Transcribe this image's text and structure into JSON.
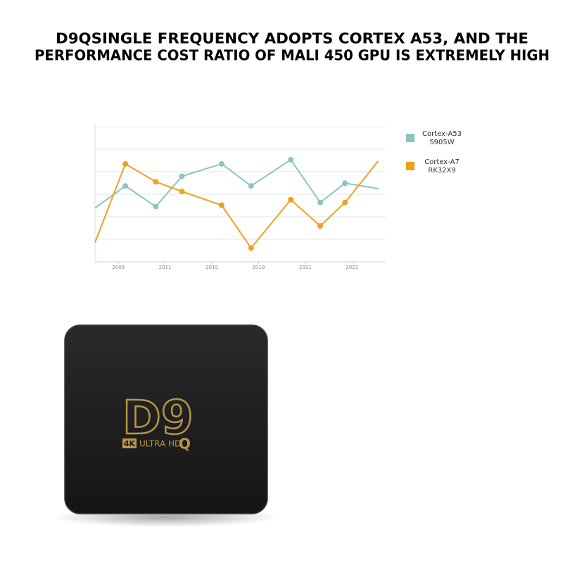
{
  "chart_data": {
    "type": "line",
    "title": [
      "D9QSINGLE FREQUENCY ADOPTS CORTEX A53, AND THE",
      "PERFORMANCE COST RATIO OF MALI 450 GPU IS EXTREMELY HIGH"
    ],
    "xlim": [
      -0.5,
      5.72
    ],
    "xticks": [
      {
        "value": 0,
        "label": "2009"
      },
      {
        "value": 1,
        "label": "2011"
      },
      {
        "value": 2,
        "label": "2015"
      },
      {
        "value": 3,
        "label": "2018"
      },
      {
        "value": 4,
        "label": "2021"
      },
      {
        "value": 5,
        "label": "2022"
      }
    ],
    "ylim": [
      0,
      100
    ],
    "series": [
      {
        "name": "Cortex-A53",
        "model": "S905W",
        "color": "#8cc3c3",
        "x": [
          -0.5,
          0.15,
          0.8,
          1.36,
          2.21,
          2.84,
          3.69,
          4.32,
          4.85,
          5.57
        ],
        "values": [
          39,
          55,
          40,
          62,
          71,
          55,
          74,
          43,
          57,
          53
        ]
      },
      {
        "name": "Cortex-A7",
        "model": "RK32X9",
        "color": "#f0a020",
        "x": [
          -0.5,
          0.15,
          0.8,
          1.36,
          2.21,
          2.84,
          3.69,
          4.32,
          4.85,
          5.56
        ],
        "values": [
          14,
          71,
          58,
          51,
          41,
          10,
          45,
          26,
          43,
          73
        ]
      }
    ]
  },
  "product": {
    "logo": "D9",
    "logo_suffix": "Q",
    "badge": "4K",
    "badge_text": "ULTRA HD"
  }
}
